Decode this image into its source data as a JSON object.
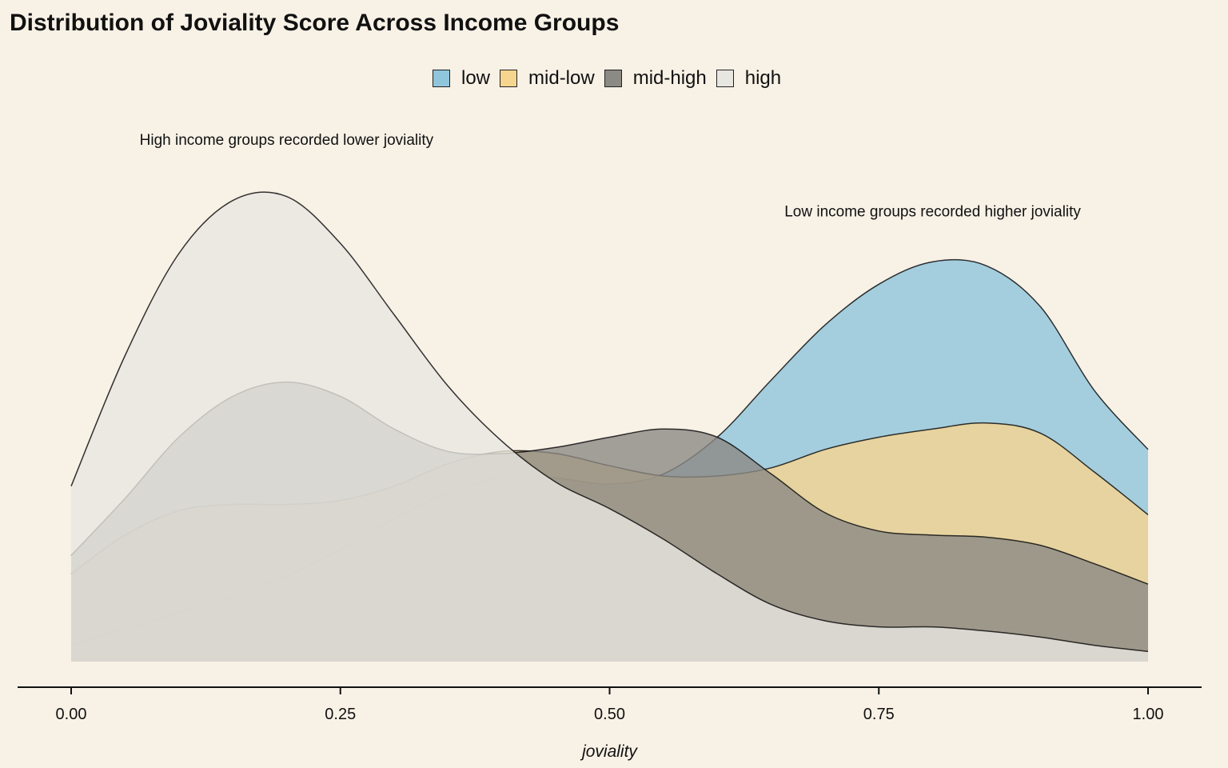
{
  "chart_data": {
    "type": "area",
    "title": "Distribution of Joviality Score Across Income Groups",
    "xlabel": "joviality",
    "ylabel": "",
    "xlim": [
      0,
      1
    ],
    "ylim": [
      0,
      2.4
    ],
    "x_ticks": [
      "0.00",
      "0.25",
      "0.50",
      "0.75",
      "1.00"
    ],
    "x_tick_values": [
      0,
      0.25,
      0.5,
      0.75,
      1.0
    ],
    "grid": false,
    "legend_position": "top",
    "annotations": [
      {
        "text": "High income groups recorded lower joviality",
        "x": 0.2,
        "y": 2.4
      },
      {
        "text": "Low income groups recorded higher joviality",
        "x": 0.8,
        "y": 2.05
      }
    ],
    "series": [
      {
        "name": "low",
        "color": "#8fc6dc",
        "x": [
          0,
          0.05,
          0.1,
          0.15,
          0.2,
          0.25,
          0.3,
          0.35,
          0.4,
          0.45,
          0.5,
          0.55,
          0.6,
          0.65,
          0.7,
          0.75,
          0.8,
          0.85,
          0.9,
          0.95,
          1.0
        ],
        "y": [
          0.08,
          0.16,
          0.24,
          0.32,
          0.42,
          0.55,
          0.7,
          0.83,
          0.9,
          0.9,
          0.87,
          0.92,
          1.1,
          1.38,
          1.65,
          1.85,
          1.96,
          1.94,
          1.74,
          1.33,
          1.04
        ]
      },
      {
        "name": "mid-low",
        "color": "#f6d58e",
        "x": [
          0,
          0.05,
          0.1,
          0.15,
          0.2,
          0.25,
          0.3,
          0.35,
          0.4,
          0.45,
          0.5,
          0.55,
          0.6,
          0.65,
          0.7,
          0.75,
          0.8,
          0.85,
          0.9,
          0.95,
          1.0
        ],
        "y": [
          0.43,
          0.62,
          0.74,
          0.77,
          0.77,
          0.79,
          0.86,
          0.97,
          1.03,
          1.02,
          0.96,
          0.91,
          0.91,
          0.95,
          1.04,
          1.1,
          1.14,
          1.17,
          1.12,
          0.93,
          0.72
        ]
      },
      {
        "name": "mid-high",
        "color": "#8c8a84",
        "x": [
          0,
          0.05,
          0.1,
          0.15,
          0.2,
          0.25,
          0.3,
          0.35,
          0.4,
          0.45,
          0.5,
          0.55,
          0.6,
          0.65,
          0.7,
          0.75,
          0.8,
          0.85,
          0.9,
          0.95,
          1.0
        ],
        "y": [
          0.52,
          0.8,
          1.1,
          1.3,
          1.37,
          1.3,
          1.14,
          1.03,
          1.02,
          1.05,
          1.1,
          1.14,
          1.1,
          0.92,
          0.73,
          0.64,
          0.62,
          0.61,
          0.57,
          0.48,
          0.38
        ]
      },
      {
        "name": "high",
        "color": "#e8e6e1",
        "x": [
          0,
          0.05,
          0.1,
          0.15,
          0.2,
          0.25,
          0.3,
          0.35,
          0.4,
          0.45,
          0.5,
          0.55,
          0.6,
          0.65,
          0.7,
          0.75,
          0.8,
          0.85,
          0.9,
          0.95,
          1.0
        ],
        "y": [
          0.86,
          1.5,
          2.0,
          2.26,
          2.28,
          2.05,
          1.7,
          1.35,
          1.08,
          0.88,
          0.75,
          0.6,
          0.43,
          0.28,
          0.2,
          0.17,
          0.17,
          0.15,
          0.12,
          0.08,
          0.05
        ]
      }
    ]
  }
}
